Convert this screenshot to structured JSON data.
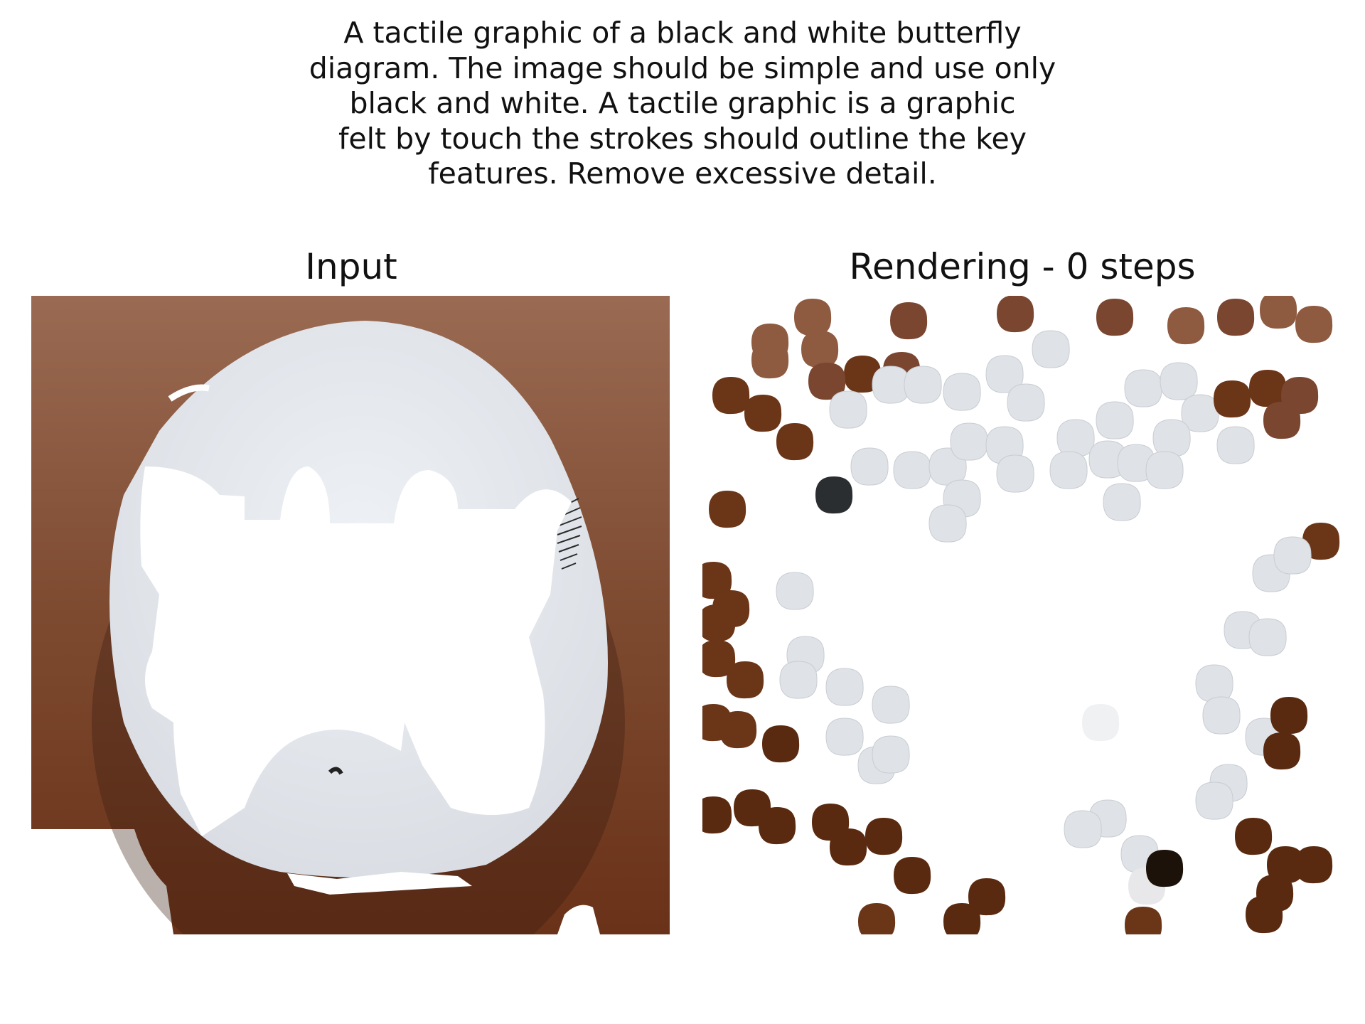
{
  "caption_lines": [
    "A tactile graphic of a black and white butterfly",
    "diagram. The image should be simple and use only",
    "black and white. A tactile graphic is a graphic",
    "felt by touch the strokes should outline the key",
    "features. Remove excessive detail."
  ],
  "panels": {
    "input": {
      "title": "Input"
    },
    "rendering": {
      "title": "Rendering - 0 steps"
    }
  },
  "colors": {
    "background_brown": "#8a553a",
    "paper": "#e1e6ec",
    "stroke_dark": "#2a2a2a",
    "dot_brown_light": "#8c5a3e",
    "dot_brown_dark": "#5a2a12",
    "dot_gray": "#dde1e6",
    "dot_black": "#1e1e1e"
  }
}
